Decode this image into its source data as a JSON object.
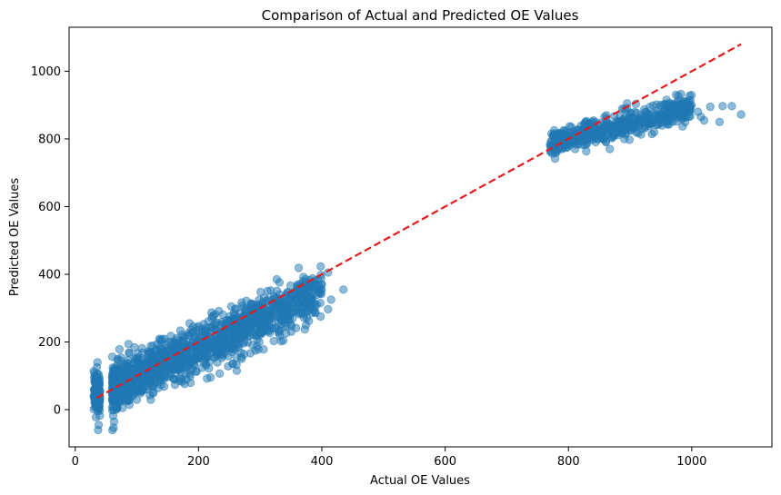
{
  "chart_data": {
    "type": "scatter",
    "title": "Comparison of Actual and Predicted OE Values",
    "xlabel": "Actual OE Values",
    "ylabel": "Predicted OE Values",
    "xlim": [
      -10,
      1130
    ],
    "ylim": [
      -110,
      1130
    ],
    "xticks": [
      0,
      200,
      400,
      600,
      800,
      1000
    ],
    "yticks": [
      0,
      200,
      400,
      600,
      800,
      1000
    ],
    "xtick_labels": [
      "0",
      "200",
      "400",
      "600",
      "800",
      "1000"
    ],
    "ytick_labels": [
      "0",
      "200",
      "400",
      "600",
      "800",
      "1000"
    ],
    "grid": false,
    "legend": "none",
    "point_color": "#1f77b4",
    "point_alpha": 0.5,
    "line_color": "#e41a1c",
    "clusters": [
      {
        "x_range": [
          30,
          40
        ],
        "y_center": 50,
        "y_spread": 60,
        "count": 120,
        "kind": "vertical"
      },
      {
        "x_range": [
          60,
          400
        ],
        "slope": 0.85,
        "intercept": 10,
        "y_spread": 35,
        "count": 1400,
        "kind": "band"
      },
      {
        "x_range": [
          770,
          1000
        ],
        "slope": 0.45,
        "intercept": 440,
        "y_spread": 20,
        "count": 500,
        "kind": "band"
      }
    ],
    "outliers": [
      {
        "x": 1010,
        "y": 880
      },
      {
        "x": 1015,
        "y": 865
      },
      {
        "x": 1020,
        "y": 855
      },
      {
        "x": 1030,
        "y": 895
      },
      {
        "x": 1045,
        "y": 850
      },
      {
        "x": 1050,
        "y": 897
      },
      {
        "x": 1065,
        "y": 897
      },
      {
        "x": 1080,
        "y": 872
      },
      {
        "x": 960,
        "y": 880
      },
      {
        "x": 985,
        "y": 885
      },
      {
        "x": 895,
        "y": 905
      },
      {
        "x": 890,
        "y": 888
      },
      {
        "x": 435,
        "y": 355
      },
      {
        "x": 410,
        "y": 405
      },
      {
        "x": 410,
        "y": 297
      },
      {
        "x": 415,
        "y": 325
      },
      {
        "x": 400,
        "y": 370
      },
      {
        "x": 385,
        "y": 388
      },
      {
        "x": 262,
        "y": 115
      },
      {
        "x": 255,
        "y": 135
      },
      {
        "x": 270,
        "y": 150
      },
      {
        "x": 248,
        "y": 128
      },
      {
        "x": 36,
        "y": 140
      },
      {
        "x": 37,
        "y": -60
      },
      {
        "x": 38,
        "y": -45
      },
      {
        "x": 35,
        "y": 125
      }
    ],
    "reference_line": {
      "x": [
        35,
        1080
      ],
      "y": [
        35,
        1080
      ],
      "style": "dashed"
    }
  }
}
